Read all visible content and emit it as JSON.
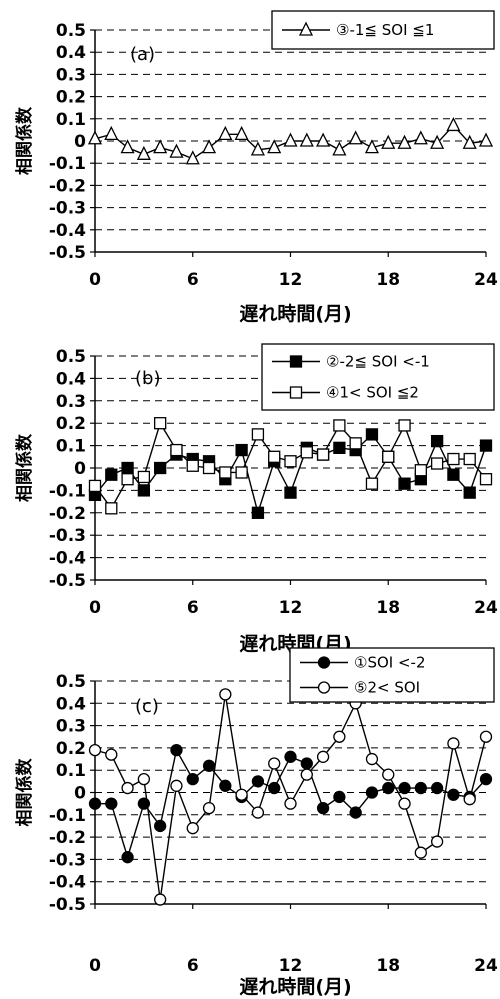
{
  "chart_data": [
    {
      "type": "line",
      "panel_label": "(a)",
      "ylabel": "相関係数",
      "xlabel": "遅れ時間(月)",
      "xlim": [
        0,
        24
      ],
      "ylim": [
        -0.5,
        0.5
      ],
      "xticks": [
        "0",
        "6",
        "12",
        "18",
        "24"
      ],
      "yticks": [
        "0.5",
        "0.4",
        "0.3",
        "0.2",
        "0.1",
        "0",
        "-0.1",
        "-0.2",
        "-0.3",
        "-0.4",
        "-0.5"
      ],
      "grid": true,
      "legend_position": "top-right",
      "x": [
        0,
        1,
        2,
        3,
        4,
        5,
        6,
        7,
        8,
        9,
        10,
        11,
        12,
        13,
        14,
        15,
        16,
        17,
        18,
        19,
        20,
        21,
        22,
        23,
        24
      ],
      "series": [
        {
          "name": "③-1≦ SOI ≦1",
          "marker": "triangle-open",
          "values": [
            0.01,
            0.03,
            -0.03,
            -0.06,
            -0.03,
            -0.05,
            -0.08,
            -0.03,
            0.03,
            0.03,
            -0.04,
            -0.03,
            0.0,
            0.0,
            0.0,
            -0.04,
            0.01,
            -0.03,
            -0.01,
            -0.01,
            0.01,
            -0.01,
            0.07,
            -0.01,
            0.0
          ]
        }
      ]
    },
    {
      "type": "line",
      "panel_label": "(b)",
      "ylabel": "相関係数",
      "xlabel": "遅れ時間(月)",
      "xlim": [
        0,
        24
      ],
      "ylim": [
        -0.5,
        0.5
      ],
      "xticks": [
        "0",
        "6",
        "12",
        "18",
        "24"
      ],
      "yticks": [
        "0.5",
        "0.4",
        "0.3",
        "0.2",
        "0.1",
        "0",
        "-0.1",
        "-0.2",
        "-0.3",
        "-0.4",
        "-0.5"
      ],
      "grid": true,
      "legend_position": "top-right",
      "x": [
        0,
        1,
        2,
        3,
        4,
        5,
        6,
        7,
        8,
        9,
        10,
        11,
        12,
        13,
        14,
        15,
        16,
        17,
        18,
        19,
        20,
        21,
        22,
        23,
        24
      ],
      "series": [
        {
          "name": "②-2≦ SOI <-1",
          "marker": "square-filled",
          "values": [
            -0.12,
            -0.03,
            0.0,
            -0.1,
            0.0,
            0.06,
            0.04,
            0.03,
            -0.05,
            0.08,
            -0.2,
            0.03,
            -0.11,
            0.09,
            0.06,
            0.09,
            0.08,
            0.15,
            0.05,
            -0.07,
            -0.05,
            0.12,
            -0.03,
            -0.11,
            0.1
          ]
        },
        {
          "name": "④1< SOI ≦2",
          "marker": "square-open",
          "values": [
            -0.08,
            -0.18,
            -0.05,
            -0.04,
            0.2,
            0.08,
            0.01,
            0.0,
            -0.02,
            -0.02,
            0.15,
            0.05,
            0.03,
            0.07,
            0.06,
            0.19,
            0.11,
            -0.07,
            0.05,
            0.19,
            -0.01,
            0.02,
            0.04,
            0.04,
            -0.05
          ]
        }
      ]
    },
    {
      "type": "line",
      "panel_label": "(c)",
      "ylabel": "相関係数",
      "xlabel": "遅れ時間(月)",
      "xlim": [
        0,
        24
      ],
      "ylim": [
        -0.5,
        0.5
      ],
      "xticks": [
        "0",
        "6",
        "12",
        "18",
        "24"
      ],
      "yticks": [
        "0.5",
        "0.4",
        "0.3",
        "0.2",
        "0.1",
        "0",
        "-0.1",
        "-0.2",
        "-0.3",
        "-0.4",
        "-0.5"
      ],
      "grid": true,
      "legend_position": "top-right",
      "x": [
        0,
        1,
        2,
        3,
        4,
        5,
        6,
        7,
        8,
        9,
        10,
        11,
        12,
        13,
        14,
        15,
        16,
        17,
        18,
        19,
        20,
        21,
        22,
        23,
        24
      ],
      "series": [
        {
          "name": "①SOI <-2",
          "marker": "circle-filled",
          "values": [
            -0.05,
            -0.05,
            -0.29,
            -0.05,
            -0.15,
            0.19,
            0.06,
            0.12,
            0.03,
            -0.02,
            0.05,
            0.02,
            0.16,
            0.13,
            -0.07,
            -0.02,
            -0.09,
            0.0,
            0.02,
            0.02,
            0.02,
            0.02,
            -0.01,
            -0.02,
            0.06
          ]
        },
        {
          "name": "⑤2< SOI",
          "marker": "circle-open",
          "values": [
            0.19,
            0.17,
            0.02,
            0.06,
            -0.48,
            0.03,
            -0.16,
            -0.07,
            0.44,
            -0.01,
            -0.09,
            0.13,
            -0.05,
            0.08,
            0.16,
            0.25,
            0.4,
            0.15,
            0.08,
            -0.05,
            -0.27,
            -0.22,
            0.22,
            -0.03,
            0.25
          ]
        }
      ]
    }
  ]
}
